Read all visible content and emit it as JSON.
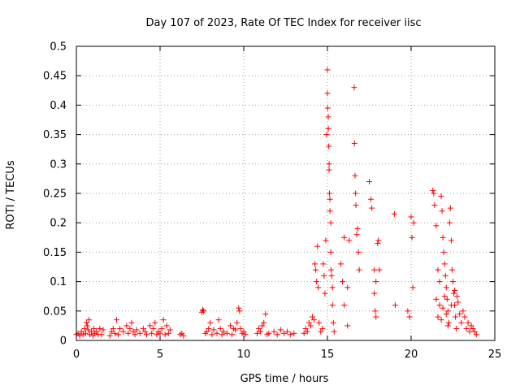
{
  "chart_data": {
    "type": "scatter",
    "title": "Day 107 of 2023, Rate Of TEC Index for receiver iisc",
    "xlabel": "GPS time / hours",
    "ylabel": "ROTI / TECUs",
    "xlim": [
      0,
      25
    ],
    "ylim": [
      0,
      0.5
    ],
    "xticks": [
      0,
      5,
      10,
      15,
      20,
      25
    ],
    "xtick_labels": [
      "0",
      "5",
      "10",
      "15",
      "20",
      "25"
    ],
    "yticks": [
      0,
      0.05,
      0.1,
      0.15,
      0.2,
      0.25,
      0.3,
      0.35,
      0.4,
      0.45,
      0.5
    ],
    "ytick_labels": [
      "0",
      "0.05",
      "0.1",
      "0.15",
      "0.2",
      "0.25",
      "0.3",
      "0.35",
      "0.4",
      "0.45",
      "0.5"
    ],
    "grid": true,
    "marker": "+",
    "color": "#ff0000",
    "points": [
      [
        0.0,
        0.01
      ],
      [
        0.1,
        0.012
      ],
      [
        0.2,
        0.008
      ],
      [
        0.3,
        0.015
      ],
      [
        0.4,
        0.01
      ],
      [
        0.5,
        0.02
      ],
      [
        0.55,
        0.012
      ],
      [
        0.6,
        0.03
      ],
      [
        0.65,
        0.025
      ],
      [
        0.7,
        0.018
      ],
      [
        0.75,
        0.035
      ],
      [
        0.8,
        0.01
      ],
      [
        0.9,
        0.015
      ],
      [
        1.0,
        0.008
      ],
      [
        1.05,
        0.02
      ],
      [
        1.1,
        0.012
      ],
      [
        1.2,
        0.015
      ],
      [
        1.3,
        0.01
      ],
      [
        1.4,
        0.02
      ],
      [
        1.5,
        0.01
      ],
      [
        1.6,
        0.018
      ],
      [
        2.0,
        0.008
      ],
      [
        2.1,
        0.015
      ],
      [
        2.2,
        0.02
      ],
      [
        2.3,
        0.012
      ],
      [
        2.4,
        0.035
      ],
      [
        2.5,
        0.01
      ],
      [
        2.6,
        0.02
      ],
      [
        2.8,
        0.015
      ],
      [
        3.0,
        0.025
      ],
      [
        3.1,
        0.012
      ],
      [
        3.2,
        0.02
      ],
      [
        3.3,
        0.03
      ],
      [
        3.4,
        0.015
      ],
      [
        3.5,
        0.01
      ],
      [
        3.6,
        0.018
      ],
      [
        3.8,
        0.012
      ],
      [
        4.0,
        0.02
      ],
      [
        4.1,
        0.015
      ],
      [
        4.2,
        0.01
      ],
      [
        4.4,
        0.025
      ],
      [
        4.5,
        0.012
      ],
      [
        4.6,
        0.02
      ],
      [
        4.7,
        0.03
      ],
      [
        4.8,
        0.01
      ],
      [
        4.9,
        0.015
      ],
      [
        5.0,
        0.012
      ],
      [
        5.1,
        0.02
      ],
      [
        5.2,
        0.035
      ],
      [
        5.3,
        0.01
      ],
      [
        5.4,
        0.025
      ],
      [
        5.5,
        0.012
      ],
      [
        5.6,
        0.018
      ],
      [
        6.2,
        0.01
      ],
      [
        6.3,
        0.012
      ],
      [
        6.4,
        0.008
      ],
      [
        7.5,
        0.048
      ],
      [
        7.55,
        0.052
      ],
      [
        7.6,
        0.05
      ],
      [
        7.7,
        0.012
      ],
      [
        7.8,
        0.015
      ],
      [
        7.9,
        0.02
      ],
      [
        8.0,
        0.03
      ],
      [
        8.1,
        0.01
      ],
      [
        8.2,
        0.018
      ],
      [
        8.4,
        0.012
      ],
      [
        8.5,
        0.035
      ],
      [
        8.6,
        0.02
      ],
      [
        8.7,
        0.01
      ],
      [
        8.8,
        0.015
      ],
      [
        9.0,
        0.012
      ],
      [
        9.2,
        0.025
      ],
      [
        9.3,
        0.01
      ],
      [
        9.4,
        0.02
      ],
      [
        9.5,
        0.018
      ],
      [
        9.6,
        0.03
      ],
      [
        9.7,
        0.055
      ],
      [
        9.75,
        0.05
      ],
      [
        9.8,
        0.02
      ],
      [
        9.9,
        0.012
      ],
      [
        10.0,
        0.015
      ],
      [
        10.1,
        0.01
      ],
      [
        10.8,
        0.012
      ],
      [
        10.9,
        0.02
      ],
      [
        11.0,
        0.015
      ],
      [
        11.1,
        0.025
      ],
      [
        11.2,
        0.03
      ],
      [
        11.3,
        0.045
      ],
      [
        11.4,
        0.01
      ],
      [
        11.5,
        0.012
      ],
      [
        11.8,
        0.015
      ],
      [
        12.0,
        0.01
      ],
      [
        12.2,
        0.018
      ],
      [
        12.4,
        0.012
      ],
      [
        12.6,
        0.015
      ],
      [
        12.8,
        0.01
      ],
      [
        13.0,
        0.012
      ],
      [
        13.6,
        0.012
      ],
      [
        13.7,
        0.02
      ],
      [
        13.8,
        0.015
      ],
      [
        13.9,
        0.03
      ],
      [
        14.0,
        0.025
      ],
      [
        14.1,
        0.04
      ],
      [
        14.2,
        0.035
      ],
      [
        14.25,
        0.13
      ],
      [
        14.3,
        0.12
      ],
      [
        14.35,
        0.1
      ],
      [
        14.4,
        0.16
      ],
      [
        14.45,
        0.09
      ],
      [
        14.5,
        0.03
      ],
      [
        14.6,
        0.015
      ],
      [
        14.7,
        0.02
      ],
      [
        14.75,
        0.13
      ],
      [
        14.8,
        0.11
      ],
      [
        14.85,
        0.08
      ],
      [
        14.9,
        0.17
      ],
      [
        14.95,
        0.35
      ],
      [
        15.0,
        0.46
      ],
      [
        15.0,
        0.42
      ],
      [
        15.02,
        0.395
      ],
      [
        15.05,
        0.38
      ],
      [
        15.05,
        0.36
      ],
      [
        15.08,
        0.33
      ],
      [
        15.1,
        0.3
      ],
      [
        15.1,
        0.29
      ],
      [
        15.12,
        0.25
      ],
      [
        15.15,
        0.24
      ],
      [
        15.15,
        0.22
      ],
      [
        15.2,
        0.2
      ],
      [
        15.2,
        0.15
      ],
      [
        15.22,
        0.12
      ],
      [
        15.25,
        0.11
      ],
      [
        15.3,
        0.09
      ],
      [
        15.3,
        0.06
      ],
      [
        15.35,
        0.03
      ],
      [
        15.4,
        0.015
      ],
      [
        15.8,
        0.13
      ],
      [
        15.9,
        0.1
      ],
      [
        16.0,
        0.175
      ],
      [
        16.2,
        0.09
      ],
      [
        16.3,
        0.17
      ],
      [
        16.6,
        0.43
      ],
      [
        16.62,
        0.335
      ],
      [
        16.65,
        0.28
      ],
      [
        16.68,
        0.25
      ],
      [
        16.7,
        0.23
      ],
      [
        16.75,
        0.18
      ],
      [
        16.8,
        0.19
      ],
      [
        16.85,
        0.15
      ],
      [
        16.9,
        0.12
      ],
      [
        16.0,
        0.06
      ],
      [
        16.2,
        0.025
      ],
      [
        17.5,
        0.27
      ],
      [
        17.6,
        0.24
      ],
      [
        17.65,
        0.225
      ],
      [
        17.8,
        0.12
      ],
      [
        17.9,
        0.1
      ],
      [
        18.0,
        0.165
      ],
      [
        18.05,
        0.17
      ],
      [
        18.1,
        0.12
      ],
      [
        17.8,
        0.08
      ],
      [
        17.85,
        0.05
      ],
      [
        17.9,
        0.04
      ],
      [
        19.0,
        0.215
      ],
      [
        19.05,
        0.06
      ],
      [
        19.8,
        0.05
      ],
      [
        19.9,
        0.04
      ],
      [
        20.0,
        0.21
      ],
      [
        20.05,
        0.175
      ],
      [
        20.1,
        0.09
      ],
      [
        20.15,
        0.2
      ],
      [
        21.3,
        0.255
      ],
      [
        21.35,
        0.25
      ],
      [
        21.4,
        0.23
      ],
      [
        21.5,
        0.195
      ],
      [
        21.6,
        0.12
      ],
      [
        21.7,
        0.1
      ],
      [
        21.8,
        0.245
      ],
      [
        21.85,
        0.22
      ],
      [
        21.9,
        0.175
      ],
      [
        21.95,
        0.15
      ],
      [
        22.0,
        0.13
      ],
      [
        22.05,
        0.11
      ],
      [
        22.1,
        0.09
      ],
      [
        22.15,
        0.07
      ],
      [
        22.2,
        0.05
      ],
      [
        22.25,
        0.03
      ],
      [
        22.3,
        0.2
      ],
      [
        22.35,
        0.225
      ],
      [
        22.4,
        0.17
      ],
      [
        22.45,
        0.12
      ],
      [
        22.5,
        0.1
      ],
      [
        22.55,
        0.08
      ],
      [
        22.6,
        0.06
      ],
      [
        22.65,
        0.04
      ],
      [
        22.7,
        0.02
      ],
      [
        22.75,
        0.075
      ],
      [
        22.8,
        0.065
      ],
      [
        22.9,
        0.045
      ],
      [
        23.0,
        0.03
      ],
      [
        23.1,
        0.05
      ],
      [
        23.2,
        0.04
      ],
      [
        23.3,
        0.02
      ],
      [
        23.4,
        0.03
      ],
      [
        23.5,
        0.015
      ],
      [
        23.6,
        0.025
      ],
      [
        23.7,
        0.02
      ],
      [
        23.8,
        0.015
      ],
      [
        23.9,
        0.01
      ],
      [
        21.5,
        0.07
      ],
      [
        21.6,
        0.04
      ],
      [
        21.7,
        0.06
      ],
      [
        21.8,
        0.035
      ],
      [
        21.9,
        0.055
      ],
      [
        22.0,
        0.075
      ],
      [
        22.1,
        0.045
      ],
      [
        22.2,
        0.025
      ],
      [
        22.4,
        0.06
      ],
      [
        22.6,
        0.085
      ]
    ]
  }
}
